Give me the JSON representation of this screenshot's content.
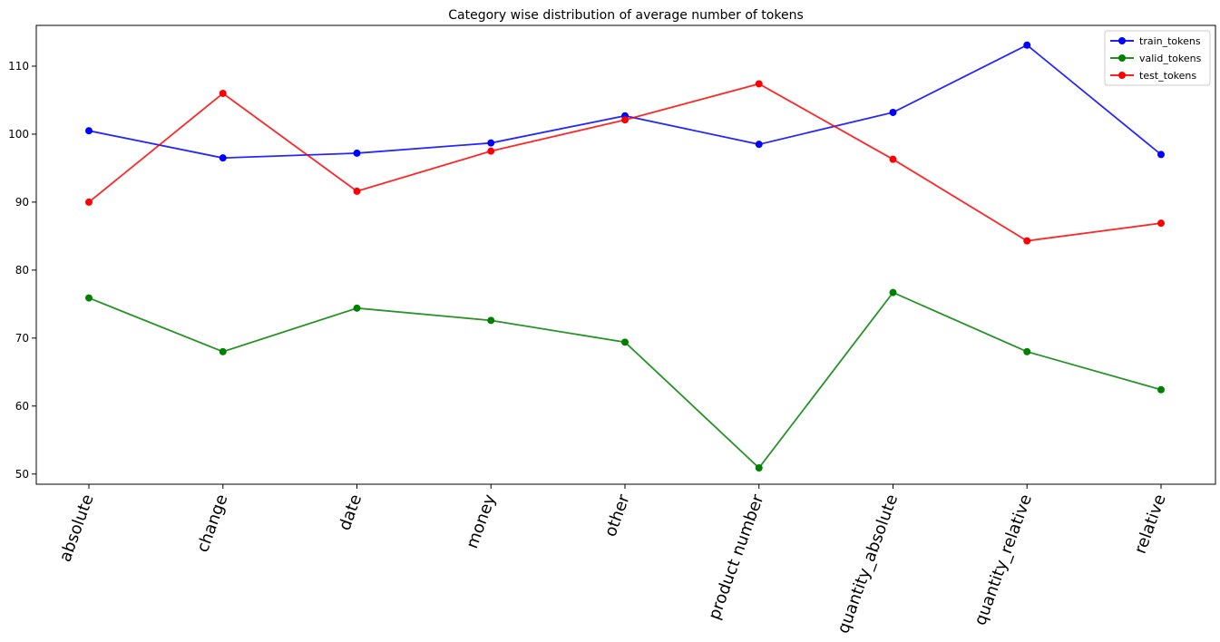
{
  "chart_data": {
    "type": "line",
    "title": "Category wise distribution of average number of tokens",
    "categories": [
      "absolute",
      "change",
      "date",
      "money",
      "other",
      "product number",
      "quantity_absolute",
      "quantity_relative",
      "relative"
    ],
    "yticks": [
      "50",
      "60",
      "70",
      "80",
      "90",
      "100",
      "110"
    ],
    "ylim": [
      48.5,
      116
    ],
    "legend_position": "top-right",
    "grid": false,
    "series": [
      {
        "name": "train_tokens",
        "color": "#0000ff",
        "values": [
          100.5,
          96.5,
          97.2,
          98.7,
          102.7,
          98.5,
          103.2,
          113.1,
          97.0
        ]
      },
      {
        "name": "valid_tokens",
        "color": "#008000",
        "values": [
          75.9,
          68.0,
          74.4,
          72.6,
          69.4,
          50.9,
          76.7,
          68.0,
          62.4
        ]
      },
      {
        "name": "test_tokens",
        "color": "#ff0000",
        "values": [
          90.0,
          106.0,
          91.6,
          97.5,
          102.1,
          107.4,
          96.3,
          84.3,
          86.9
        ]
      }
    ]
  }
}
